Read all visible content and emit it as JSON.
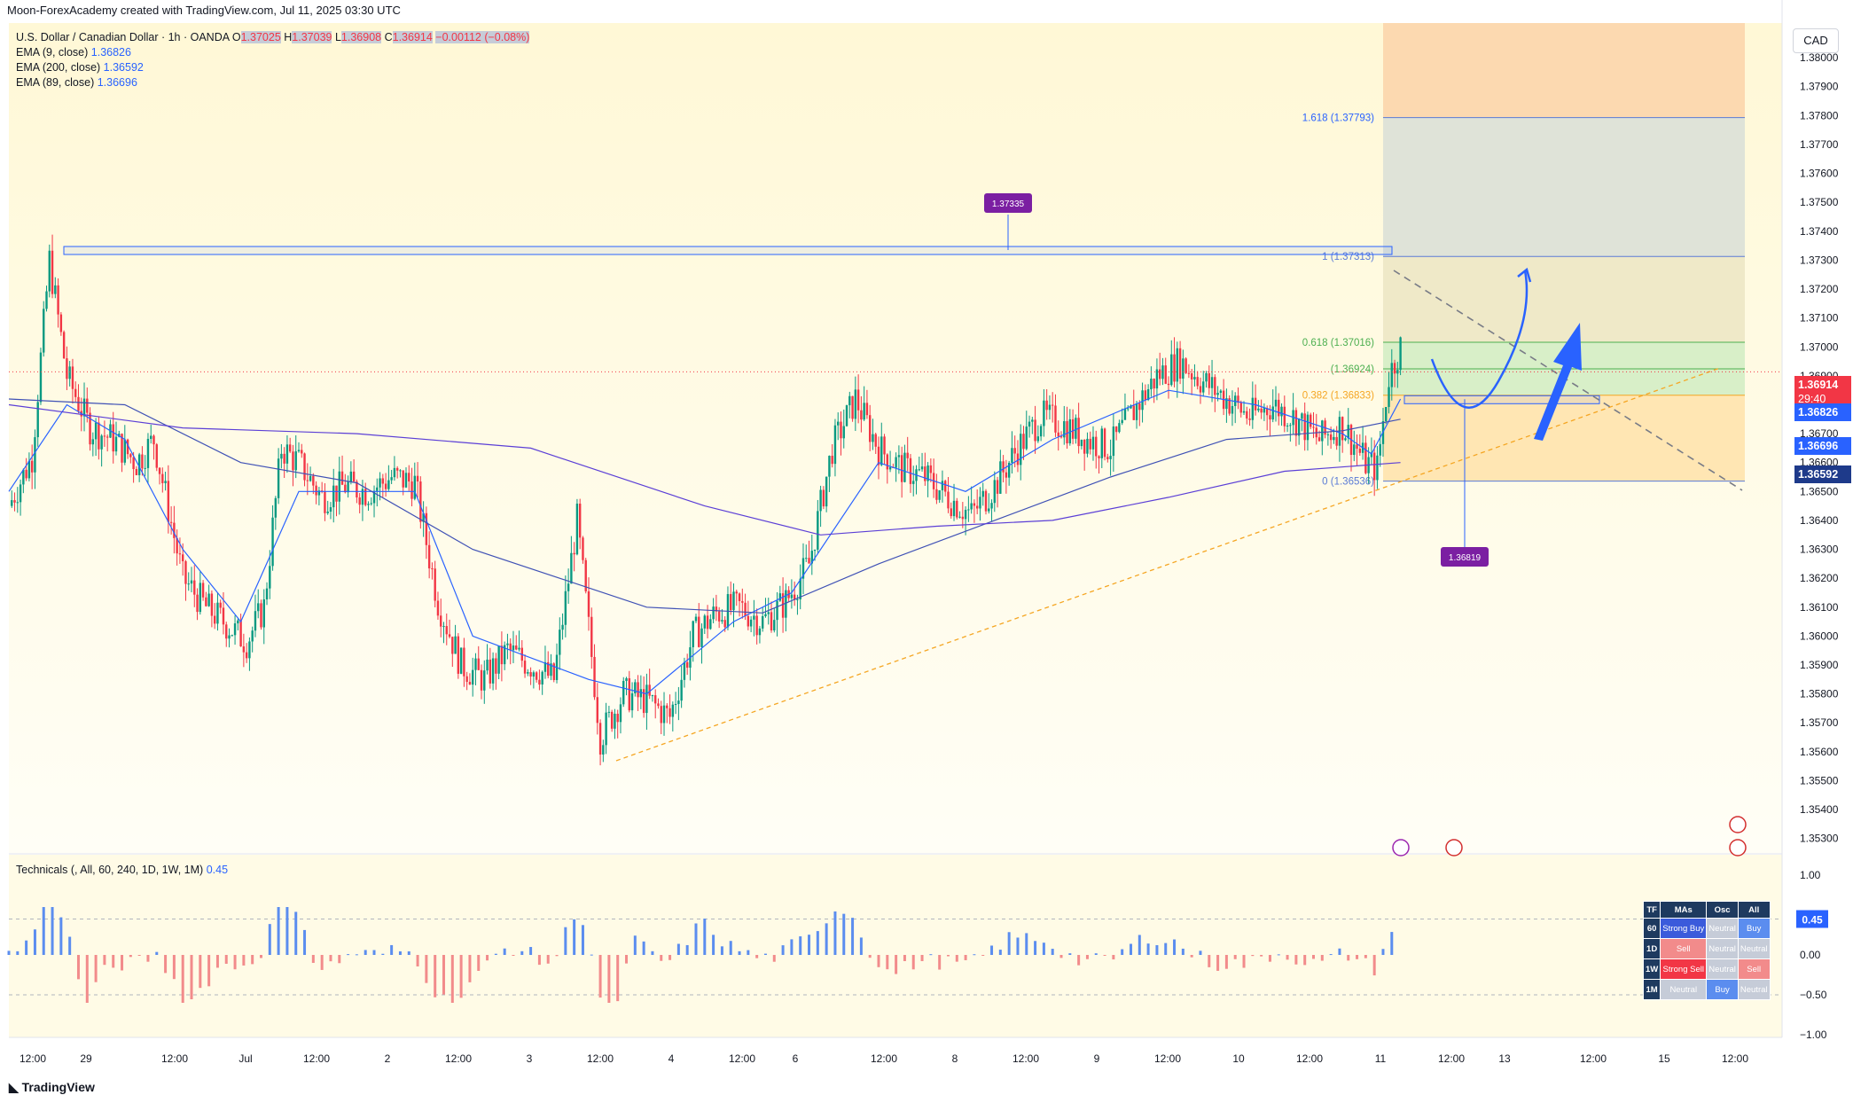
{
  "header": {
    "attribution": "Moon-ForexAcademy created with TradingView.com, Jul 11, 2025 03:30 UTC"
  },
  "symbol": {
    "name": "U.S. Dollar / Canadian Dollar · 1h · OANDA",
    "open_label": "O",
    "open": "1.37025",
    "high_label": "H",
    "high": "1.37039",
    "low_label": "L",
    "low": "1.36908",
    "close_label": "C",
    "close": "1.36914",
    "change": "−0.00112 (−0.08%)"
  },
  "indicators": [
    {
      "label": "EMA (9, close)",
      "value": "1.36826",
      "color": "#2962ff"
    },
    {
      "label": "EMA (200, close)",
      "value": "1.36592",
      "color": "#5b3fd6"
    },
    {
      "label": "EMA (89, close)",
      "value": "1.36696",
      "color": "#2962ff"
    }
  ],
  "currency": "CAD",
  "price_tags": {
    "last": "1.36914",
    "countdown": "29:40",
    "ema9": "1.36826",
    "ema89": "1.36696",
    "ema200": "1.36592"
  },
  "annotations": {
    "callout_top": "1.37335",
    "callout_bottom": "1.36819",
    "fib_1618": "1.618 (1.37793)",
    "fib_1": "1 (1.37313)",
    "fib_0618": "0.618 (1.37016)",
    "fib_05": "(1.36924)",
    "fib_0382": "0.382 (1.36833)",
    "fib_0": "0 (1.36536)"
  },
  "technicals": {
    "title": "Technicals (, All, 60, 240, 1D, 1W, 1M)",
    "value": "0.45",
    "ticks": [
      "1.00",
      "0.45",
      "0.00",
      "−0.50",
      "−1.00"
    ],
    "table": {
      "headers": [
        "TF",
        "MAs",
        "Osc",
        "All"
      ],
      "rows": [
        [
          "60",
          "Strong Buy",
          "Neutral",
          "Buy"
        ],
        [
          "1D",
          "Sell",
          "Neutral",
          "Neutral"
        ],
        [
          "1W",
          "Strong Sell",
          "Neutral",
          "Sell"
        ],
        [
          "1M",
          "Neutral",
          "Buy",
          "Neutral"
        ]
      ]
    }
  },
  "chart_data": {
    "type": "candlestick",
    "price_axis_ticks": [
      "1.38000",
      "1.37900",
      "1.37800",
      "1.37700",
      "1.37600",
      "1.37500",
      "1.37400",
      "1.37300",
      "1.37200",
      "1.37100",
      "1.37000",
      "1.36900",
      "1.36800",
      "1.36700",
      "1.36600",
      "1.36500",
      "1.36400",
      "1.36300",
      "1.36200",
      "1.36100",
      "1.36000",
      "1.35900",
      "1.35800",
      "1.35700",
      "1.35600",
      "1.35500",
      "1.35400",
      "1.35300"
    ],
    "ylim": [
      1.3525,
      1.3812
    ],
    "time_axis_labels": [
      "12:00",
      "29",
      "12:00",
      "Jul",
      "12:00",
      "2",
      "12:00",
      "3",
      "12:00",
      "4",
      "12:00",
      "6",
      "12:00",
      "8",
      "12:00",
      "9",
      "12:00",
      "10",
      "12:00",
      "11",
      "12:00",
      "13",
      "12:00",
      "15",
      "12:00"
    ],
    "close_path": [
      [
        0,
        1.3645
      ],
      [
        8,
        1.3662
      ],
      [
        14,
        1.373
      ],
      [
        20,
        1.369
      ],
      [
        28,
        1.3672
      ],
      [
        36,
        1.3668
      ],
      [
        44,
        1.366
      ],
      [
        50,
        1.3668
      ],
      [
        60,
        1.362
      ],
      [
        68,
        1.361
      ],
      [
        74,
        1.3605
      ],
      [
        82,
        1.3598
      ],
      [
        88,
        1.361
      ],
      [
        94,
        1.3665
      ],
      [
        100,
        1.366
      ],
      [
        108,
        1.3648
      ],
      [
        116,
        1.3652
      ],
      [
        124,
        1.365
      ],
      [
        132,
        1.3655
      ],
      [
        140,
        1.3653
      ],
      [
        148,
        1.3612
      ],
      [
        156,
        1.359
      ],
      [
        164,
        1.3585
      ],
      [
        172,
        1.3595
      ],
      [
        180,
        1.359
      ],
      [
        188,
        1.3585
      ],
      [
        196,
        1.364
      ],
      [
        204,
        1.3565
      ],
      [
        212,
        1.358
      ],
      [
        220,
        1.3578
      ],
      [
        228,
        1.3572
      ],
      [
        236,
        1.36
      ],
      [
        244,
        1.3608
      ],
      [
        252,
        1.361
      ],
      [
        260,
        1.3605
      ],
      [
        268,
        1.3612
      ],
      [
        276,
        1.3625
      ],
      [
        284,
        1.3665
      ],
      [
        292,
        1.3682
      ],
      [
        300,
        1.3665
      ],
      [
        308,
        1.3658
      ],
      [
        316,
        1.3655
      ],
      [
        324,
        1.3648
      ],
      [
        332,
        1.3642
      ],
      [
        340,
        1.3652
      ],
      [
        348,
        1.3665
      ],
      [
        356,
        1.3676
      ],
      [
        364,
        1.3673
      ],
      [
        372,
        1.3668
      ],
      [
        380,
        1.3665
      ],
      [
        388,
        1.3678
      ],
      [
        396,
        1.369
      ],
      [
        404,
        1.3695
      ],
      [
        412,
        1.3688
      ],
      [
        420,
        1.3682
      ],
      [
        428,
        1.3676
      ],
      [
        436,
        1.368
      ],
      [
        444,
        1.3675
      ],
      [
        452,
        1.3668
      ],
      [
        460,
        1.3673
      ],
      [
        468,
        1.366
      ],
      [
        472,
        1.3658
      ],
      [
        476,
        1.369
      ],
      [
        480,
        1.37
      ]
    ],
    "emas": {
      "ema9": [
        [
          0,
          1.365
        ],
        [
          20,
          1.368
        ],
        [
          40,
          1.3668
        ],
        [
          60,
          1.363
        ],
        [
          80,
          1.3605
        ],
        [
          100,
          1.365
        ],
        [
          140,
          1.365
        ],
        [
          160,
          1.36
        ],
        [
          200,
          1.3585
        ],
        [
          220,
          1.358
        ],
        [
          250,
          1.3605
        ],
        [
          270,
          1.3615
        ],
        [
          300,
          1.366
        ],
        [
          330,
          1.365
        ],
        [
          360,
          1.3668
        ],
        [
          400,
          1.3685
        ],
        [
          430,
          1.368
        ],
        [
          460,
          1.367
        ],
        [
          470,
          1.3663
        ],
        [
          480,
          1.3682
        ]
      ],
      "ema89": [
        [
          0,
          1.3682
        ],
        [
          40,
          1.368
        ],
        [
          80,
          1.366
        ],
        [
          120,
          1.3653
        ],
        [
          160,
          1.363
        ],
        [
          220,
          1.361
        ],
        [
          260,
          1.3608
        ],
        [
          300,
          1.3625
        ],
        [
          340,
          1.364
        ],
        [
          380,
          1.3655
        ],
        [
          420,
          1.3668
        ],
        [
          460,
          1.3671
        ],
        [
          480,
          1.3675
        ]
      ],
      "ema200": [
        [
          0,
          1.368
        ],
        [
          60,
          1.3672
        ],
        [
          120,
          1.367
        ],
        [
          180,
          1.3665
        ],
        [
          240,
          1.3645
        ],
        [
          280,
          1.3635
        ],
        [
          320,
          1.3638
        ],
        [
          360,
          1.364
        ],
        [
          400,
          1.3648
        ],
        [
          440,
          1.3657
        ],
        [
          480,
          1.366
        ]
      ]
    }
  }
}
